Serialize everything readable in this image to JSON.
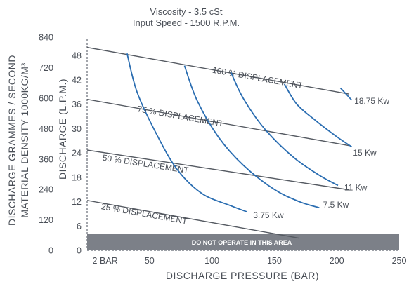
{
  "chart_data": {
    "type": "line",
    "title_lines": [
      "Viscosity - 3.5 cSt",
      "Input Speed - 1500 R.P.M."
    ],
    "xlabel": "DISCHARGE PRESSURE (BAR)",
    "ylabel_left": "DISCHARGE (L.P.M.)",
    "ylabel_outer": [
      "DISCHARGE GRAMMES / SECOND",
      "MATERIAL DENSITY 1000KG/M³"
    ],
    "x_ticks": [
      {
        "value": 2,
        "label": "2 BAR"
      },
      {
        "value": 50,
        "label": "50"
      },
      {
        "value": 100,
        "label": "100"
      },
      {
        "value": 150,
        "label": "150"
      },
      {
        "value": 200,
        "label": "200"
      },
      {
        "value": 250,
        "label": "250"
      }
    ],
    "xlim": [
      0,
      250
    ],
    "ylim": [
      0,
      52
    ],
    "y_ticks_lpm": [
      {
        "value": 0,
        "label": "0"
      },
      {
        "value": 6,
        "label": "6"
      },
      {
        "value": 12,
        "label": "12"
      },
      {
        "value": 18,
        "label": "18"
      },
      {
        "value": 24,
        "label": "24"
      },
      {
        "value": 30,
        "label": "30"
      },
      {
        "value": 36,
        "label": "36"
      },
      {
        "value": 42,
        "label": "42"
      },
      {
        "value": 48,
        "label": "48"
      }
    ],
    "y_ticks_gps": [
      {
        "value": 0,
        "label": "0"
      },
      {
        "value": 120,
        "label": "120"
      },
      {
        "value": 240,
        "label": "240"
      },
      {
        "value": 360,
        "label": "360"
      },
      {
        "value": 480,
        "label": "480"
      },
      {
        "value": 600,
        "label": "600"
      },
      {
        "value": 720,
        "label": "720"
      },
      {
        "value": 840,
        "label": "840"
      }
    ],
    "forbidden_zone": {
      "y_max": 4,
      "label": "DO NOT OPERATE IN THIS AREA",
      "color": "#7c8088"
    },
    "displacement_lines": [
      {
        "name": "100 % DISPLACEMENT",
        "points": [
          [
            0,
            50
          ],
          [
            210,
            38.5
          ]
        ],
        "label_x": 100,
        "label_y": 43.8
      },
      {
        "name": "75 % DISPLACEMENT",
        "points": [
          [
            0,
            37.2
          ],
          [
            210,
            25.8
          ]
        ],
        "label_x": 40,
        "label_y": 34.2
      },
      {
        "name": "50 % DISPLACEMENT",
        "points": [
          [
            0,
            24.7
          ],
          [
            210,
            14.9
          ]
        ],
        "label_x": 12,
        "label_y": 22.2
      },
      {
        "name": "25 % DISPLACEMENT",
        "points": [
          [
            0,
            12.3
          ],
          [
            170,
            3
          ]
        ],
        "label_x": 11,
        "label_y": 10.2
      }
    ],
    "power_curves": [
      {
        "name": "3.75 Kw",
        "points": [
          [
            32,
            48.5
          ],
          [
            40,
            39
          ],
          [
            55,
            29
          ],
          [
            72,
            20
          ],
          [
            92,
            14
          ],
          [
            115,
            11
          ],
          [
            128,
            9.5
          ]
        ],
        "label": "3.75 Kw",
        "label_x": 133,
        "label_y": 8.6
      },
      {
        "name": "7.5 Kw",
        "points": [
          [
            78,
            45.5
          ],
          [
            88,
            37
          ],
          [
            105,
            28
          ],
          [
            125,
            21
          ],
          [
            150,
            15
          ],
          [
            170,
            12
          ],
          [
            186,
            10.5
          ]
        ],
        "label": "7.5 Kw",
        "label_x": 189,
        "label_y": 11.2
      },
      {
        "name": "11 Kw",
        "points": [
          [
            115,
            44
          ],
          [
            125,
            37.5
          ],
          [
            142,
            30
          ],
          [
            165,
            23
          ],
          [
            186,
            18.5
          ],
          [
            201,
            16
          ]
        ],
        "label": "11 Kw",
        "label_x": 206,
        "label_y": 15.5
      },
      {
        "name": "15 Kw",
        "points": [
          [
            158,
            41
          ],
          [
            168,
            36
          ],
          [
            183,
            32
          ],
          [
            200,
            28
          ],
          [
            212,
            25.5
          ]
        ],
        "label": "15 Kw",
        "label_x": 213,
        "label_y": 24
      },
      {
        "name": "18.75 Kw",
        "points": [
          [
            203,
            40
          ],
          [
            212,
            37
          ]
        ],
        "label": "18.75 Kw",
        "label_x": 214,
        "label_y": 36.8
      }
    ],
    "line_color": "#555a62",
    "curve_color": "#2a6db1",
    "grid": false
  }
}
